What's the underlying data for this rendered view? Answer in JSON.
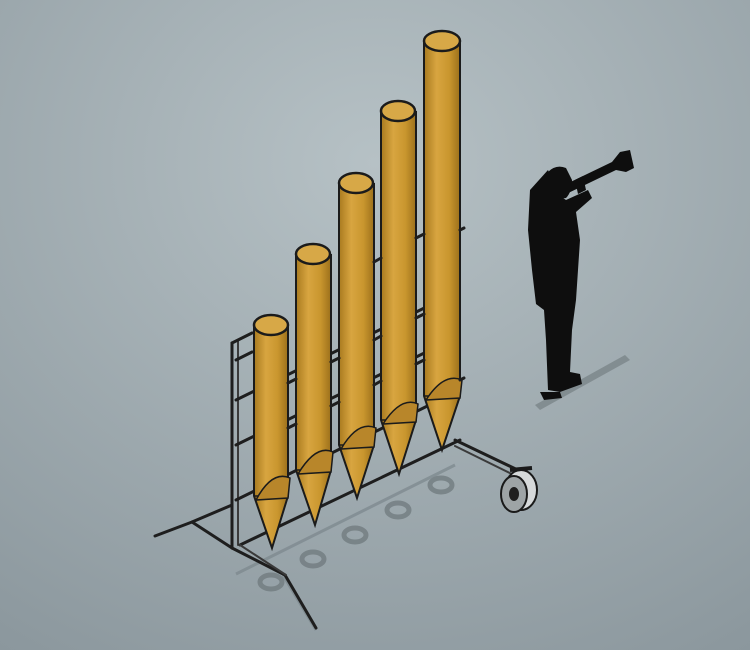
{
  "scene": {
    "tube_count": 5,
    "tube_color": "#c9962e",
    "tube_shade": "#a87a1f",
    "frame_color": "#1f1f1f",
    "silhouette_color": "#0d0d0d",
    "background_top": "#b3bec2",
    "background_bottom": "#8f9aa0",
    "objects": [
      "tubes",
      "frame",
      "wheel",
      "ring-shadows",
      "trumpet-player-silhouette"
    ]
  }
}
